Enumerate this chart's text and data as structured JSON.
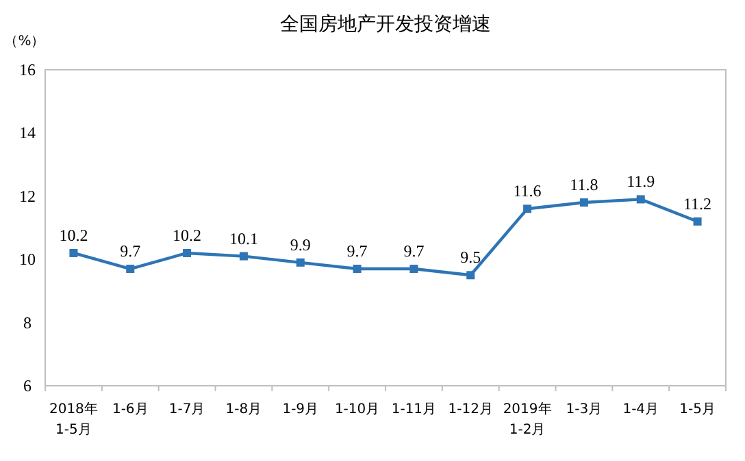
{
  "chart_data": {
    "type": "line",
    "title": "全国房地产开发投资增速",
    "ylabel": "（%）",
    "categories": [
      "2018年\n1-5月",
      "1-6月",
      "1-7月",
      "1-8月",
      "1-9月",
      "1-10月",
      "1-11月",
      "1-12月",
      "2019年\n1-2月",
      "1-3月",
      "1-4月",
      "1-5月"
    ],
    "series": [
      {
        "color": "#2e75b6",
        "values": [
          10.2,
          9.7,
          10.2,
          10.1,
          9.9,
          9.7,
          9.7,
          9.5,
          11.6,
          11.8,
          11.9,
          11.2
        ]
      }
    ],
    "ylim": [
      6,
      16
    ],
    "yticks": [
      6,
      8,
      10,
      12,
      14,
      16
    ],
    "grid": false,
    "marker": "square",
    "line_style": "solid",
    "data_labels": true
  }
}
